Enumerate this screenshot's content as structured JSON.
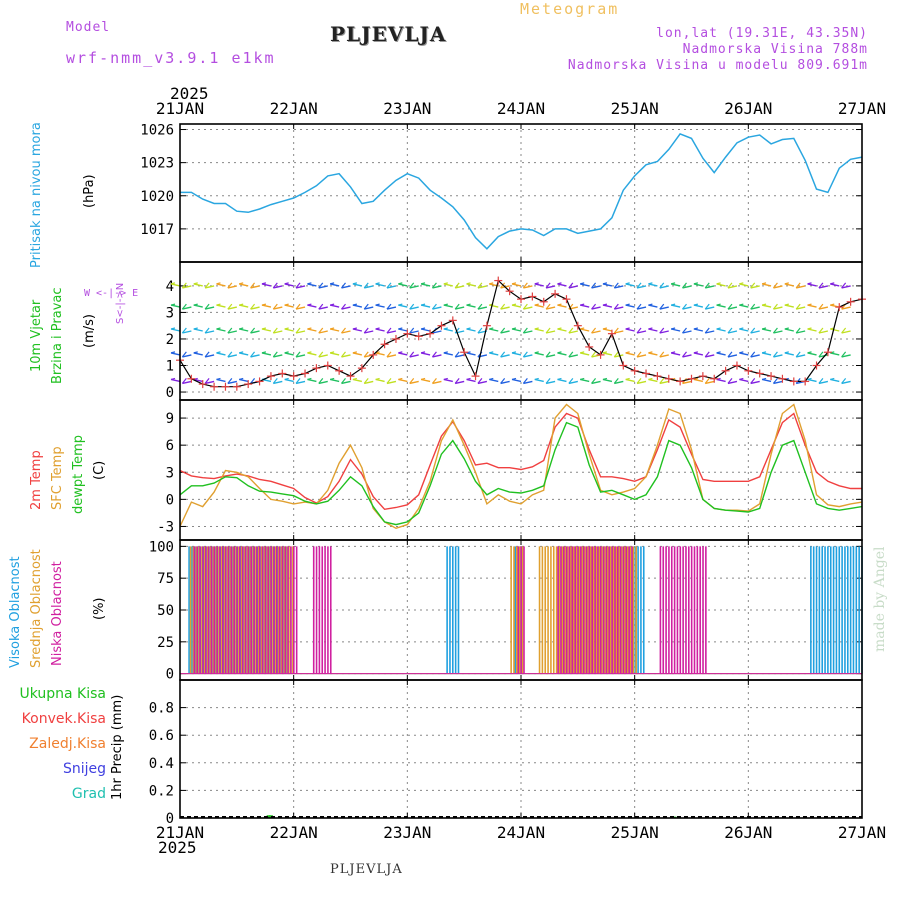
{
  "header": {
    "model_label": "Model",
    "model_name": "wrf-nmm_v3.9.1 e1km",
    "product": "Meteogram",
    "station": "PLJEVLJA",
    "lonlat": "lon,lat (19.31E, 43.35N)",
    "elevation": "Nadmorska Visina 788m",
    "model_elevation": "Nadmorska Visina u modelu 809.691m"
  },
  "footer": {
    "station": "PLJEVLJA",
    "watermark": "made by Angel"
  },
  "time_axis": {
    "year": "2025",
    "ticks": [
      "21JAN",
      "22JAN",
      "23JAN",
      "24JAN",
      "25JAN",
      "26JAN",
      "27JAN"
    ]
  },
  "labels": {
    "pressure": {
      "title": "Pritisak na nivou mora",
      "unit": "(hPa)"
    },
    "wind": {
      "title1": "10m Vjetar",
      "title2": "Brzina i Pravac",
      "unit": "(m/s)",
      "compass": "W <-|-> E",
      "compass_n": "N",
      "compass_s": "S"
    },
    "temp": {
      "t2m": "2m Temp",
      "sfc": "SFC Temp",
      "dew": "dewpt Temp",
      "unit": "(C)"
    },
    "cloud": {
      "high": "Visoka Oblacnost",
      "mid": "Srednja Oblacnost",
      "low": "Niska Oblacnost",
      "unit": "(%)"
    },
    "precip": {
      "total": "Ukupna Kisa",
      "conv": "Konvek.Kisa",
      "frz": "Zaledj.Kisa",
      "snow": "Snijeg",
      "hail": "Grad",
      "unit": "1hr Precip (mm)"
    }
  },
  "colors": {
    "pressure": "#2aa6e0",
    "t2m": "#f04040",
    "sfc": "#e0a030",
    "dew": "#20c020",
    "cloud_high": "#20a0e0",
    "cloud_mid": "#e0a030",
    "cloud_low": "#d020a0",
    "precip_total": "#20c020",
    "precip_conv": "#f04040",
    "precip_frz": "#f08030",
    "precip_snow": "#4040e0",
    "precip_hail": "#20c0b0",
    "wind_speed": "#e04040",
    "grid": "#888888"
  },
  "chart_data": [
    {
      "id": "pressure",
      "type": "line",
      "xlim": [
        0,
        6
      ],
      "ylim": [
        1014,
        1026.5
      ],
      "yticks": [
        1017,
        1020,
        1023,
        1026
      ],
      "series": [
        {
          "color": "#2aa6e0",
          "x": [
            0,
            0.1,
            0.2,
            0.3,
            0.4,
            0.5,
            0.6,
            0.7,
            0.8,
            0.9,
            1.0,
            1.1,
            1.2,
            1.3,
            1.4,
            1.5,
            1.6,
            1.7,
            1.8,
            1.9,
            2.0,
            2.1,
            2.2,
            2.3,
            2.4,
            2.5,
            2.6,
            2.7,
            2.8,
            2.9,
            3.0,
            3.1,
            3.2,
            3.3,
            3.4,
            3.5,
            3.6,
            3.7,
            3.8,
            3.9,
            4.0,
            4.1,
            4.2,
            4.3,
            4.4,
            4.5,
            4.6,
            4.7,
            4.8,
            4.9,
            5.0,
            5.1,
            5.2,
            5.3,
            5.4,
            5.5,
            5.6,
            5.7,
            5.8,
            5.9,
            6.0
          ],
          "y": [
            1020.3,
            1020.3,
            1019.7,
            1019.3,
            1019.3,
            1018.6,
            1018.5,
            1018.8,
            1019.2,
            1019.5,
            1019.8,
            1020.3,
            1020.9,
            1021.8,
            1022.0,
            1020.8,
            1019.3,
            1019.5,
            1020.5,
            1021.4,
            1022.0,
            1021.6,
            1020.5,
            1019.8,
            1019.0,
            1017.8,
            1016.2,
            1015.2,
            1016.3,
            1016.8,
            1017.0,
            1016.9,
            1016.4,
            1017.0,
            1017.0,
            1016.6,
            1016.8,
            1017.0,
            1018.0,
            1020.5,
            1021.8,
            1022.8,
            1023.1,
            1024.2,
            1025.6,
            1025.2,
            1023.4,
            1022.1,
            1023.5,
            1024.8,
            1025.3,
            1025.5,
            1024.7,
            1025.1,
            1025.2,
            1023.2,
            1020.6,
            1020.3,
            1022.5,
            1023.3,
            1023.5
          ]
        }
      ]
    },
    {
      "id": "wind",
      "type": "line",
      "xlim": [
        0,
        6
      ],
      "ylim": [
        -0.3,
        4.9
      ],
      "yticks": [
        0,
        1,
        2,
        3,
        4
      ],
      "series": [
        {
          "name": "speed",
          "color": "#e04040",
          "x": [
            0,
            0.1,
            0.2,
            0.3,
            0.4,
            0.5,
            0.6,
            0.7,
            0.8,
            0.9,
            1.0,
            1.1,
            1.2,
            1.3,
            1.4,
            1.5,
            1.6,
            1.7,
            1.8,
            1.9,
            2.0,
            2.1,
            2.2,
            2.3,
            2.4,
            2.5,
            2.6,
            2.7,
            2.8,
            2.9,
            3.0,
            3.1,
            3.2,
            3.3,
            3.4,
            3.5,
            3.6,
            3.7,
            3.8,
            3.9,
            4.0,
            4.1,
            4.2,
            4.3,
            4.4,
            4.5,
            4.6,
            4.7,
            4.8,
            4.9,
            5.0,
            5.1,
            5.2,
            5.3,
            5.4,
            5.5,
            5.6,
            5.7,
            5.8,
            5.9,
            6.0
          ],
          "y": [
            1.2,
            0.5,
            0.3,
            0.2,
            0.2,
            0.2,
            0.3,
            0.4,
            0.6,
            0.7,
            0.6,
            0.7,
            0.9,
            1.0,
            0.8,
            0.6,
            0.9,
            1.4,
            1.8,
            2.0,
            2.2,
            2.1,
            2.2,
            2.5,
            2.7,
            1.5,
            0.6,
            2.5,
            4.2,
            3.8,
            3.5,
            3.6,
            3.4,
            3.7,
            3.5,
            2.5,
            1.7,
            1.4,
            2.2,
            1.0,
            0.8,
            0.7,
            0.6,
            0.5,
            0.4,
            0.5,
            0.6,
            0.5,
            0.8,
            1.0,
            0.8,
            0.7,
            0.6,
            0.5,
            0.4,
            0.4,
            1.0,
            1.5,
            3.2,
            3.4,
            3.5
          ]
        }
      ],
      "vectors": {
        "rows": [
          0.4,
          1.4,
          2.3,
          3.2,
          4.0
        ],
        "palette": [
          "#8020e0",
          "#2060e0",
          "#20b0e0",
          "#20c060",
          "#c0e020",
          "#f0a020"
        ]
      }
    },
    {
      "id": "temperature",
      "type": "line",
      "xlim": [
        0,
        6
      ],
      "ylim": [
        -4.5,
        11
      ],
      "yticks": [
        -3,
        0,
        3,
        6,
        9
      ],
      "x": [
        0,
        0.1,
        0.2,
        0.3,
        0.4,
        0.5,
        0.6,
        0.7,
        0.8,
        0.9,
        1.0,
        1.1,
        1.2,
        1.3,
        1.4,
        1.5,
        1.6,
        1.7,
        1.8,
        1.9,
        2.0,
        2.1,
        2.2,
        2.3,
        2.4,
        2.5,
        2.6,
        2.7,
        2.8,
        2.9,
        3.0,
        3.1,
        3.2,
        3.3,
        3.4,
        3.5,
        3.6,
        3.7,
        3.8,
        3.9,
        4.0,
        4.1,
        4.2,
        4.3,
        4.4,
        4.5,
        4.6,
        4.7,
        4.8,
        4.9,
        5.0,
        5.1,
        5.2,
        5.3,
        5.4,
        5.5,
        5.6,
        5.7,
        5.8,
        5.9,
        6.0
      ],
      "series": [
        {
          "name": "2m Temp",
          "color": "#f04040",
          "y": [
            3.2,
            2.6,
            2.4,
            2.3,
            2.6,
            2.8,
            2.6,
            2.2,
            2.0,
            1.6,
            1.2,
            0.2,
            -0.4,
            0.3,
            2.0,
            4.4,
            2.8,
            0.3,
            -1.1,
            -0.9,
            -0.6,
            0.5,
            3.8,
            7.0,
            8.6,
            6.5,
            3.8,
            4.0,
            3.5,
            3.5,
            3.3,
            3.6,
            4.3,
            8.0,
            9.5,
            9.0,
            5.5,
            2.5,
            2.5,
            2.3,
            2.0,
            2.5,
            5.5,
            8.8,
            8.0,
            5.0,
            2.2,
            2.0,
            2.0,
            2.0,
            2.0,
            2.5,
            5.5,
            8.5,
            9.5,
            6.0,
            3.0,
            2.0,
            1.5,
            1.2,
            1.2
          ]
        },
        {
          "name": "SFC Temp",
          "color": "#e0a030",
          "y": [
            -3.0,
            -0.3,
            -0.8,
            0.8,
            3.2,
            3.0,
            2.5,
            1.2,
            0.0,
            -0.2,
            -0.5,
            -0.3,
            -0.5,
            1.0,
            4.0,
            6.0,
            3.5,
            -1.0,
            -2.5,
            -3.2,
            -2.8,
            -1.0,
            2.0,
            6.5,
            8.8,
            6.0,
            3.0,
            -0.5,
            0.5,
            -0.2,
            -0.5,
            0.5,
            1.0,
            9.0,
            10.5,
            9.5,
            5.0,
            1.0,
            0.5,
            0.8,
            1.2,
            2.5,
            6.0,
            10.0,
            9.5,
            5.5,
            0.0,
            -1.0,
            -1.2,
            -1.2,
            -1.3,
            -0.5,
            5.0,
            9.5,
            10.5,
            6.5,
            0.5,
            -0.6,
            -0.8,
            -0.5,
            -0.3
          ]
        },
        {
          "name": "dewpt Temp",
          "color": "#20c020",
          "y": [
            0.5,
            1.5,
            1.5,
            1.8,
            2.5,
            2.4,
            1.5,
            0.9,
            0.8,
            0.6,
            0.4,
            -0.2,
            -0.5,
            -0.2,
            1.0,
            2.5,
            1.5,
            -0.8,
            -2.5,
            -2.8,
            -2.5,
            -1.5,
            1.5,
            5.0,
            6.5,
            4.5,
            2.0,
            0.5,
            1.2,
            0.8,
            0.7,
            1.0,
            1.5,
            5.5,
            8.5,
            8.0,
            3.8,
            0.8,
            1.0,
            0.5,
            0.0,
            0.5,
            2.5,
            6.5,
            6.0,
            3.5,
            0.0,
            -1.0,
            -1.2,
            -1.3,
            -1.4,
            -1.0,
            3.0,
            6.0,
            6.5,
            3.0,
            -0.5,
            -1.0,
            -1.2,
            -1.0,
            -0.8
          ]
        }
      ]
    },
    {
      "id": "cloud",
      "type": "bar",
      "xlim": [
        0,
        6
      ],
      "ylim": [
        -5,
        105
      ],
      "yticks": [
        0,
        25,
        50,
        75,
        100
      ],
      "series": [
        {
          "name": "Visoka Oblacnost",
          "color": "#20a0e0",
          "segments": [
            [
              0.08,
              0.95
            ],
            [
              2.95,
              3.0
            ],
            [
              2.35,
              2.45
            ],
            [
              3.33,
              4.1
            ],
            [
              5.55,
              6.0
            ]
          ]
        },
        {
          "name": "Srednja Oblacnost",
          "color": "#e0a030",
          "segments": [
            [
              0.08,
              1.0
            ],
            [
              2.9,
              3.0
            ],
            [
              3.15,
              4.0
            ]
          ]
        },
        {
          "name": "Niska Oblacnost",
          "color": "#d020a0",
          "segments": [
            [
              0.1,
              1.0
            ],
            [
              1.15,
              1.3
            ],
            [
              2.95,
              3.0
            ],
            [
              3.3,
              3.95
            ],
            [
              4.2,
              4.6
            ]
          ]
        }
      ]
    },
    {
      "id": "precip",
      "type": "bar",
      "xlim": [
        0,
        6
      ],
      "ylim": [
        0,
        1.0
      ],
      "yticks": [
        0,
        0.2,
        0.4,
        0.6,
        0.8
      ],
      "series": [
        {
          "name": "Ukupna Kisa",
          "color": "#20c020",
          "x": [
            0.78,
            0.8,
            1.25,
            4.35
          ],
          "values": [
            0.02,
            0.02,
            0.01,
            0.01
          ]
        }
      ]
    }
  ]
}
